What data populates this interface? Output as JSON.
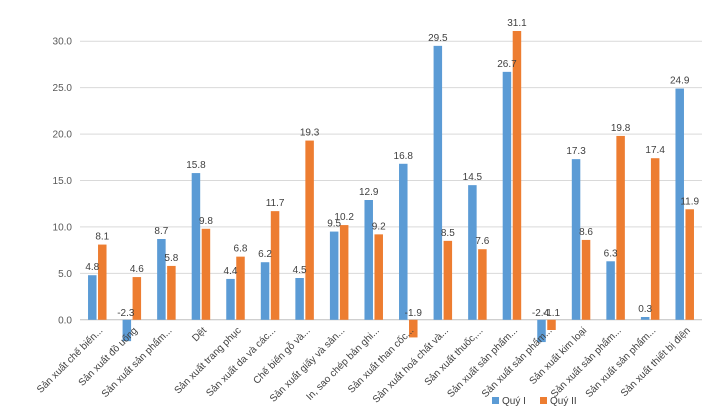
{
  "chart_data": {
    "type": "bar",
    "title": "",
    "xlabel": "",
    "ylabel": "",
    "ylim": [
      -2.5,
      32.5
    ],
    "yticks": [
      0.0,
      5.0,
      10.0,
      15.0,
      20.0,
      25.0,
      30.0
    ],
    "ytick_labels": [
      "0.0",
      "5.0",
      "10.0",
      "15.0",
      "20.0",
      "25.0",
      "30.0"
    ],
    "grid": true,
    "legend_position": "bottom-right",
    "categories": [
      "Sản xuất chế biến...",
      "Sản xuất đồ uống",
      "Sản xuất sản phẩm...",
      "Dệt",
      "Sản xuất trang phục",
      "Sản xuất da và các...",
      "Chế biến gỗ và...",
      "Sản xuất giấy và sản...",
      "In, sao chép bản ghi...",
      "Sản xuất than cốc...",
      "Sản xuất hoá chất và...",
      "Sản xuất thuốc,...",
      "Sản xuất sản phẩm...",
      "Sản xuất sản phẩm...",
      "Sản xuất kim loại",
      "Sản xuất sản phẩm...",
      "Sản xuất sản phẩm...",
      "Sản xuất thiết bị điện"
    ],
    "series": [
      {
        "name": "Quý I",
        "color": "#5B9BD5",
        "values": [
          4.8,
          -2.3,
          8.7,
          15.8,
          4.4,
          6.2,
          4.5,
          9.5,
          12.9,
          16.8,
          29.5,
          14.5,
          26.7,
          -2.4,
          17.3,
          6.3,
          0.3,
          24.9
        ],
        "labels": [
          "4.8",
          "-2.3",
          "8.7",
          "15.8",
          "4.4",
          "6.2",
          "4.5",
          "9.5",
          "12.9",
          "16.8",
          "29.5",
          "14.5",
          "26.7",
          "-2.4",
          "17.3",
          "6.3",
          "0.3",
          "24.9"
        ]
      },
      {
        "name": "Quý II",
        "color": "#ED7D31",
        "values": [
          8.1,
          4.6,
          5.8,
          9.8,
          6.8,
          11.7,
          19.3,
          10.2,
          9.2,
          -1.9,
          8.5,
          7.6,
          31.1,
          -1.1,
          8.6,
          19.8,
          17.4,
          11.9
        ],
        "labels": [
          "8.1",
          "4.6",
          "5.8",
          "9.8",
          "6.8",
          "11.7",
          "19.3",
          "10.2",
          "9.2",
          "-1.9",
          "8.5",
          "7.6",
          "31.1",
          "-1.1",
          "8.6",
          "19.8",
          "17.4",
          "11.9"
        ]
      }
    ]
  }
}
